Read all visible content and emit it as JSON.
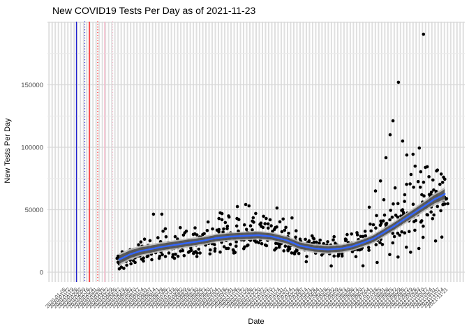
{
  "title": "New COVID19 Tests Per Day as of 2021-11-23",
  "colors": {
    "title": "#000000",
    "axis_title": "#000000",
    "tick_label": "#4d4d4d",
    "stripe": "#dfdfdf",
    "grid_major": "#d8d8d8",
    "grid_minor": "#eaeaea",
    "panel_bg": "#ffffff",
    "point": "#000000",
    "smooth_line": "#3366ff",
    "ribbon_inner": "#404040",
    "ribbon_outer": "#bdbdbd"
  },
  "chart_data": {
    "type": "scatter",
    "title": "New COVID19 Tests Per Day as of 2021-11-23",
    "xlabel": "Date",
    "ylabel": "New Tests Per Day",
    "x_domain": [
      "2019-12-02",
      "2021-12-21"
    ],
    "x_labels": {
      "start": "2020-01-05",
      "interval_days": 7,
      "count": 99,
      "angle_deg": 45
    },
    "x_gridline_count": 133,
    "y_ticks": [
      0,
      50000,
      100000,
      150000
    ],
    "y_minor_step": 25000,
    "ylim": [
      -9500,
      200500
    ],
    "grid": true,
    "legend": false,
    "event_lines": [
      {
        "date": "2020-01-23",
        "frac": 0.0694,
        "color": "#2020d0",
        "style": "solid"
      },
      {
        "date": "2020-02-07",
        "frac": 0.0895,
        "color": "#2020d0",
        "style": "dotted"
      },
      {
        "date": "2020-02-15",
        "frac": 0.1003,
        "color": "#ff0000",
        "style": "solid"
      },
      {
        "date": "2020-03-01",
        "frac": 0.1204,
        "color": "#ff0000",
        "style": "dotted"
      },
      {
        "date": "2020-03-14",
        "frac": 0.1371,
        "color": "#f9b4c9",
        "style": "solid"
      },
      {
        "date": "2020-03-28",
        "frac": 0.1564,
        "color": "#f9b4c9",
        "style": "dotted"
      }
    ],
    "smooth": {
      "anchors": [
        [
          0.172,
          10100
        ],
        [
          0.196,
          14000
        ],
        [
          0.221,
          16800
        ],
        [
          0.246,
          18400
        ],
        [
          0.271,
          20100
        ],
        [
          0.304,
          21800
        ],
        [
          0.338,
          23500
        ],
        [
          0.371,
          25100
        ],
        [
          0.405,
          27400
        ],
        [
          0.438,
          28500
        ],
        [
          0.472,
          29100
        ],
        [
          0.505,
          29600
        ],
        [
          0.538,
          28500
        ],
        [
          0.572,
          25700
        ],
        [
          0.605,
          21200
        ],
        [
          0.639,
          19000
        ],
        [
          0.672,
          18200
        ],
        [
          0.706,
          19000
        ],
        [
          0.731,
          20700
        ],
        [
          0.756,
          23500
        ],
        [
          0.781,
          26800
        ],
        [
          0.806,
          31800
        ],
        [
          0.831,
          36900
        ],
        [
          0.856,
          42500
        ],
        [
          0.881,
          48000
        ],
        [
          0.906,
          53600
        ],
        [
          0.926,
          58100
        ],
        [
          0.943,
          60900
        ],
        [
          0.952,
          62600
        ]
      ],
      "ribbon_outer": [
        5000,
        4500,
        4200,
        4000,
        3900,
        3800,
        3700,
        3600,
        3500,
        3500,
        3500,
        3500,
        3500,
        3500,
        3600,
        3600,
        3600,
        3600,
        3600,
        3600,
        3700,
        3800,
        3900,
        4000,
        4200,
        4500,
        4800,
        5200,
        5600
      ],
      "ribbon_inner": [
        3400,
        3100,
        2900,
        2800,
        2700,
        2600,
        2600,
        2500,
        2500,
        2500,
        2500,
        2500,
        2500,
        2500,
        2500,
        2500,
        2500,
        2500,
        2500,
        2500,
        2600,
        2600,
        2700,
        2800,
        2900,
        3100,
        3300,
        3600,
        3900
      ]
    },
    "scatter": {
      "radius": 2.3,
      "n": 500,
      "t_range": [
        0.167,
        0.958
      ],
      "seed": 11,
      "min_value": 900,
      "t_jitter": 0.004,
      "spread_anchors": [
        [
          0.167,
          4200
        ],
        [
          0.22,
          6000
        ],
        [
          0.3,
          8000
        ],
        [
          0.4,
          9000
        ],
        [
          0.47,
          9500
        ],
        [
          0.55,
          8500
        ],
        [
          0.62,
          6500
        ],
        [
          0.7,
          5800
        ],
        [
          0.76,
          6500
        ],
        [
          0.82,
          10000
        ],
        [
          0.88,
          13000
        ],
        [
          0.93,
          14000
        ],
        [
          0.958,
          12000
        ]
      ],
      "skew_anchors": [
        [
          0.167,
          1.1
        ],
        [
          0.35,
          1.5
        ],
        [
          0.5,
          1.6
        ],
        [
          0.65,
          1.2
        ],
        [
          0.8,
          1.6
        ],
        [
          0.9,
          1.9
        ],
        [
          0.958,
          1.3
        ]
      ],
      "outliers": [
        [
          0.901,
          190500
        ],
        [
          0.841,
          152000
        ],
        [
          0.828,
          121200
        ],
        [
          0.821,
          110000
        ],
        [
          0.851,
          105000
        ],
        [
          0.891,
          99400
        ],
        [
          0.876,
          94400
        ],
        [
          0.861,
          93800
        ],
        [
          0.811,
          91600
        ],
        [
          0.881,
          84900
        ],
        [
          0.91,
          84400
        ],
        [
          0.871,
          78200
        ],
        [
          0.798,
          73000
        ],
        [
          0.786,
          65000
        ],
        [
          0.833,
          67500
        ],
        [
          0.856,
          62000
        ],
        [
          0.806,
          58000
        ],
        [
          0.771,
          52000
        ],
        [
          0.826,
          44000
        ],
        [
          0.846,
          41000
        ],
        [
          0.911,
          45800
        ],
        [
          0.926,
          45800
        ],
        [
          0.936,
          56800
        ],
        [
          0.948,
          57000
        ],
        [
          0.952,
          54500
        ],
        [
          0.92,
          64000
        ],
        [
          0.932,
          61500
        ],
        [
          0.917,
          59900
        ],
        [
          0.254,
          46400
        ],
        [
          0.274,
          46400
        ],
        [
          0.385,
          40200
        ],
        [
          0.475,
          54200
        ],
        [
          0.483,
          53100
        ],
        [
          0.55,
          51400
        ],
        [
          0.455,
          52500
        ],
        [
          0.493,
          43600
        ],
        [
          0.414,
          47500
        ],
        [
          0.434,
          45000
        ],
        [
          0.499,
          47000
        ],
        [
          0.524,
          43000
        ],
        [
          0.418,
          42000
        ],
        [
          0.586,
          43400
        ],
        [
          0.68,
          5000
        ],
        [
          0.756,
          5100
        ],
        [
          0.62,
          8400
        ],
        [
          0.79,
          7800
        ],
        [
          0.84,
          12100
        ],
        [
          0.87,
          16000
        ],
        [
          0.89,
          19000
        ],
        [
          0.93,
          25000
        ],
        [
          0.945,
          28100
        ],
        [
          0.9,
          27900
        ],
        [
          0.86,
          20000
        ],
        [
          0.82,
          14100
        ],
        [
          0.172,
          2600
        ],
        [
          0.177,
          4100
        ],
        [
          0.183,
          3100
        ],
        [
          0.19,
          5600
        ],
        [
          0.2,
          6700
        ],
        [
          0.21,
          7800
        ],
        [
          0.23,
          8900
        ],
        [
          0.169,
          8000
        ],
        [
          0.175,
          10100
        ],
        [
          0.25,
          10000
        ],
        [
          0.3,
          12100
        ],
        [
          0.35,
          15000
        ]
      ]
    }
  }
}
